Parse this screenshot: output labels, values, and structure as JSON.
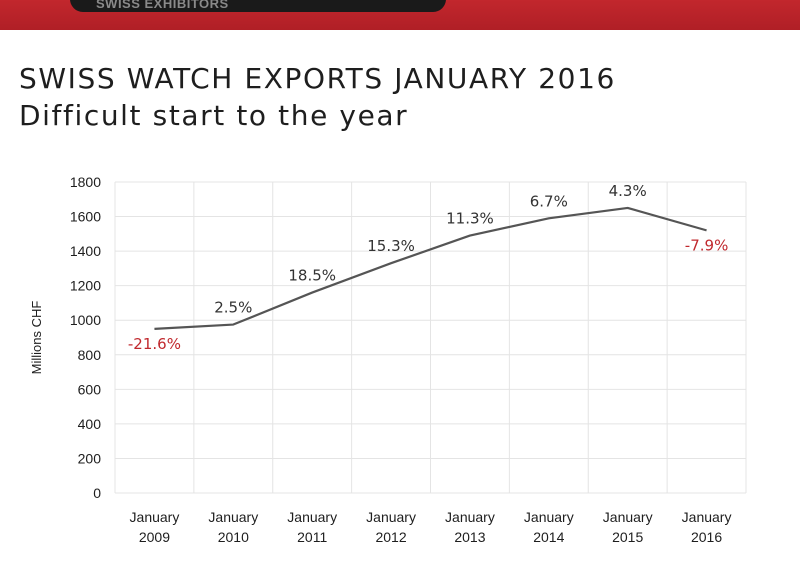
{
  "header": {
    "brand": "SWISS EXHIBITORS"
  },
  "slide": {
    "title": "SWISS WATCH EXPORTS JANUARY 2016",
    "subtitle": "Difficult start to the year"
  },
  "colors": {
    "header_red": "#b8232a",
    "line": "#555555",
    "positive_label": "#333333",
    "negative_label": "#c0282d"
  },
  "chart_data": {
    "type": "line",
    "title": "",
    "xlabel": "",
    "ylabel": "Millions CHF",
    "ylim": [
      0,
      1800
    ],
    "yticks": [
      0,
      200,
      400,
      600,
      800,
      1000,
      1200,
      1400,
      1600,
      1800
    ],
    "grid": true,
    "categories": [
      [
        "January",
        "2009"
      ],
      [
        "January",
        "2010"
      ],
      [
        "January",
        "2011"
      ],
      [
        "January",
        "2012"
      ],
      [
        "January",
        "2013"
      ],
      [
        "January",
        "2014"
      ],
      [
        "January",
        "2015"
      ],
      [
        "January",
        "2016"
      ]
    ],
    "series": [
      {
        "values": [
          950,
          975,
          1160,
          1330,
          1490,
          1590,
          1650,
          1520
        ],
        "data_labels": [
          "-21.6%",
          "2.5%",
          "18.5%",
          "15.3%",
          "11.3%",
          "6.7%",
          "4.3%",
          "-7.9%"
        ]
      }
    ]
  }
}
